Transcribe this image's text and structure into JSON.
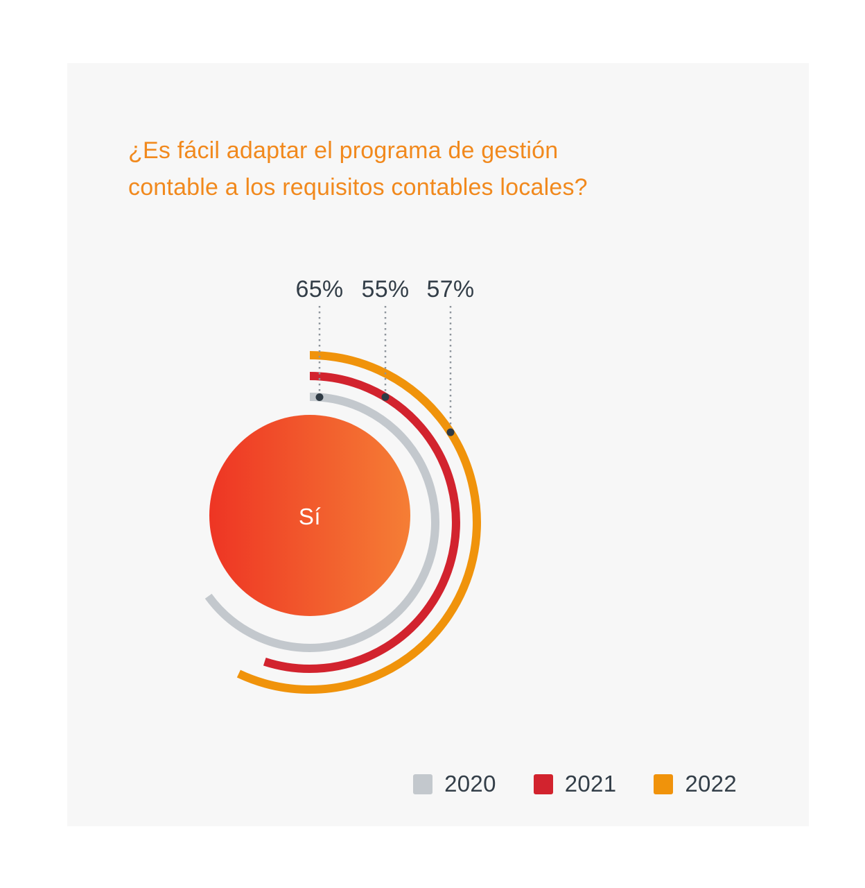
{
  "page": {
    "background": "#FFFFFF",
    "panel_background": "#F7F7F7"
  },
  "title": {
    "text": "¿Es fácil adaptar el programa de gestión contable a los requisitos contables locales?",
    "lines": [
      "¿Es fácil adaptar el programa de gestión",
      "contable a los requisitos contables locales?"
    ],
    "color": "#F1891D"
  },
  "chart_data": {
    "type": "radial-arc",
    "title": "¿Es fácil adaptar el programa de gestión contable a los requisitos contables locales?",
    "center_label": "Sí",
    "center_label_color": "#FFFFFF",
    "center_gradient": [
      "#EE3524",
      "#F57E35"
    ],
    "max_value": 100,
    "arc_direction": "clockwise-from-top",
    "series": [
      {
        "name": "2020",
        "value": 65,
        "label": "65%",
        "color": "#C3C8CD"
      },
      {
        "name": "2021",
        "value": 55,
        "label": "55%",
        "color": "#D2232E"
      },
      {
        "name": "2022",
        "value": 57,
        "label": "57%",
        "color": "#F0930B"
      }
    ],
    "value_label_color": "#333E48",
    "leader_line_color": "#8D949B",
    "leader_dot_color": "#2F3A44",
    "legend_position": "bottom-right"
  },
  "legend": {
    "items": [
      {
        "label": "2020",
        "color": "#C3C8CD"
      },
      {
        "label": "2021",
        "color": "#D2232E"
      },
      {
        "label": "2022",
        "color": "#F0930B"
      }
    ],
    "text_color": "#333E48"
  }
}
